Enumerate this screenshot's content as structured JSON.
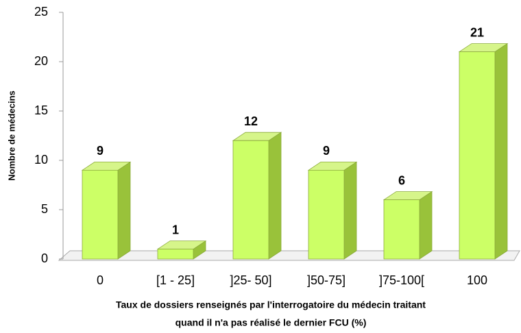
{
  "chart_data": {
    "type": "bar",
    "xlabel": [
      "Taux de dossiers renseignés par l'interrogatoire du médecin traitant",
      "quand il n'a pas réalisé le dernier FCU (%)"
    ],
    "ylabel": "Nombre de médecins",
    "categories": [
      "0",
      "[1 - 25]",
      "]25-  50]",
      "]50-75]",
      "]75-100[",
      "100"
    ],
    "values": [
      9,
      1,
      12,
      9,
      6,
      21
    ],
    "color": "#ccff66",
    "ylim": [
      0,
      25
    ],
    "yticks": [
      0,
      5,
      10,
      15,
      20,
      25
    ]
  }
}
